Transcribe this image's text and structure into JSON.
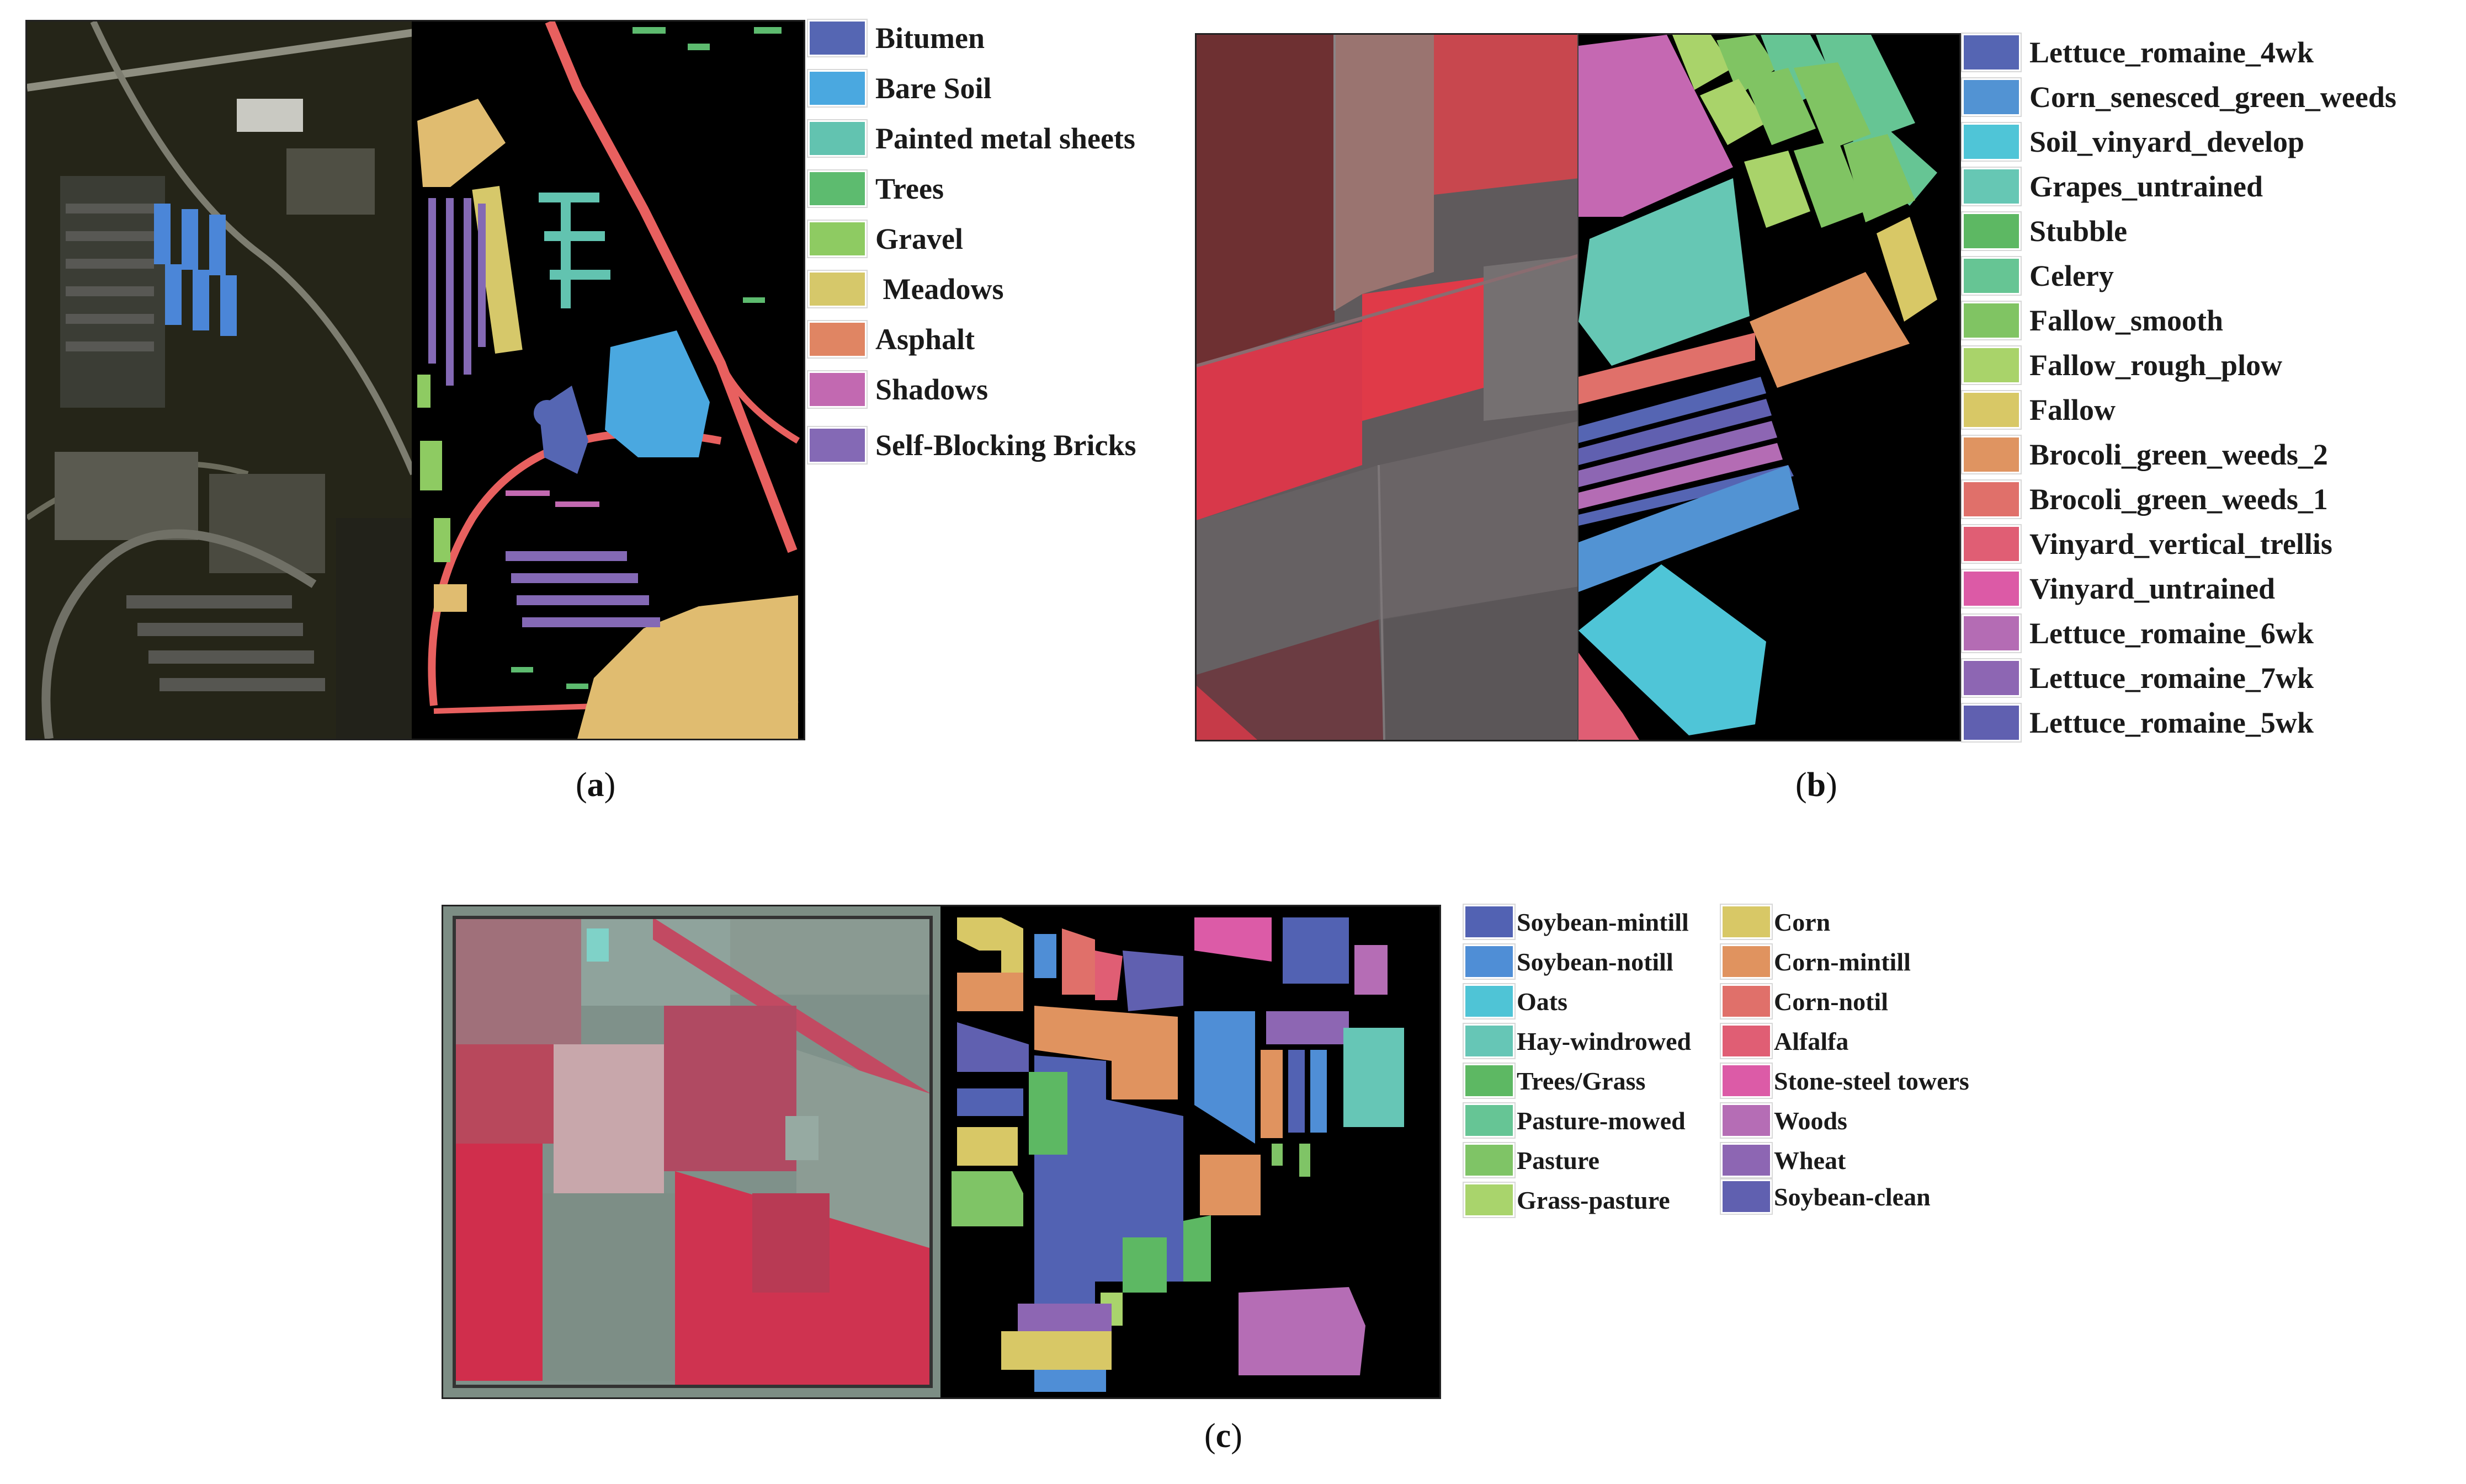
{
  "panels": {
    "a": {
      "caption_open": "(",
      "caption_letter": "a",
      "caption_close": ")",
      "legend": [
        {
          "label": "Bitumen",
          "color": "#5566b3"
        },
        {
          "label": "Bare Soil",
          "color": "#4aa8e0"
        },
        {
          "label": "Painted metal sheets",
          "color": "#62c3b0"
        },
        {
          "label": "Trees",
          "color": "#5dbb6f"
        },
        {
          "label": "Gravel",
          "color": "#8ecb62"
        },
        {
          "label": " Meadows",
          "color": "#d6c86a"
        },
        {
          "label": "Asphalt",
          "color": "#e08563"
        },
        {
          "label": "Shadows",
          "color": "#c269b1"
        },
        {
          "label": "Self-Blocking Bricks",
          "color": "#8469b5"
        }
      ]
    },
    "b": {
      "caption_open": "(",
      "caption_letter": "b",
      "caption_close": ")",
      "legend": [
        {
          "label": "Lettuce_romaine_4wk",
          "color": "#5565b3"
        },
        {
          "label": "Corn_senesced_green_weeds",
          "color": "#5293d3"
        },
        {
          "label": "Soil_vinyard_develop",
          "color": "#4fc5d7"
        },
        {
          "label": "Grapes_untrained",
          "color": "#66c7b4"
        },
        {
          "label": "Stubble",
          "color": "#5db863"
        },
        {
          "label": "Celery",
          "color": "#66c594"
        },
        {
          "label": "Fallow_smooth",
          "color": "#80c463"
        },
        {
          "label": "Fallow_rough_plow",
          "color": "#a9d36a"
        },
        {
          "label": "Fallow",
          "color": "#d8c866"
        },
        {
          "label": "Brocoli_green_weeds_2",
          "color": "#df9461"
        },
        {
          "label": "Brocoli_green_weeds_1",
          "color": "#e0706a"
        },
        {
          "label": "Vinyard_vertical_trellis",
          "color": "#e05e74"
        },
        {
          "label": "Vinyard_untrained",
          "color": "#dc5aa6"
        },
        {
          "label": "Lettuce_romaine_6wk",
          "color": "#b46cb4"
        },
        {
          "label": "Lettuce_romaine_7wk",
          "color": "#8d66b3"
        },
        {
          "label": "Lettuce_romaine_5wk",
          "color": "#6060b0"
        }
      ]
    },
    "c": {
      "caption_open": "(",
      "caption_letter": "c",
      "caption_close": ")",
      "legend_left": [
        {
          "label": "Soybean-mintill",
          "color": "#5262b3"
        },
        {
          "label": "Soybean-notill",
          "color": "#4f8ed6"
        },
        {
          "label": "Oats",
          "color": "#4fc4d6"
        },
        {
          "label": "Hay-windrowed",
          "color": "#66c6b6"
        },
        {
          "label": "Trees/Grass",
          "color": "#5db863"
        },
        {
          "label": "Pasture-mowed",
          "color": "#66c595"
        },
        {
          "label": "Pasture",
          "color": "#7fc466"
        },
        {
          "label": "Grass-pasture",
          "color": "#a9d46c"
        }
      ],
      "legend_right": [
        {
          "label": "Corn",
          "color": "#d8c866"
        },
        {
          "label": "Corn-mintill",
          "color": "#e0935f"
        },
        {
          "label": "Corn-notil",
          "color": "#e0706a"
        },
        {
          "label": "Alfalfa",
          "color": "#e05e74"
        },
        {
          "label": "Stone-steel towers",
          "color": "#dc5ba7"
        },
        {
          "label": "Woods",
          "color": "#b56db5"
        },
        {
          "label": "Wheat",
          "color": "#8d66b3"
        },
        {
          "label": "Soybean-clean",
          "color": "#6060b0"
        }
      ]
    }
  }
}
